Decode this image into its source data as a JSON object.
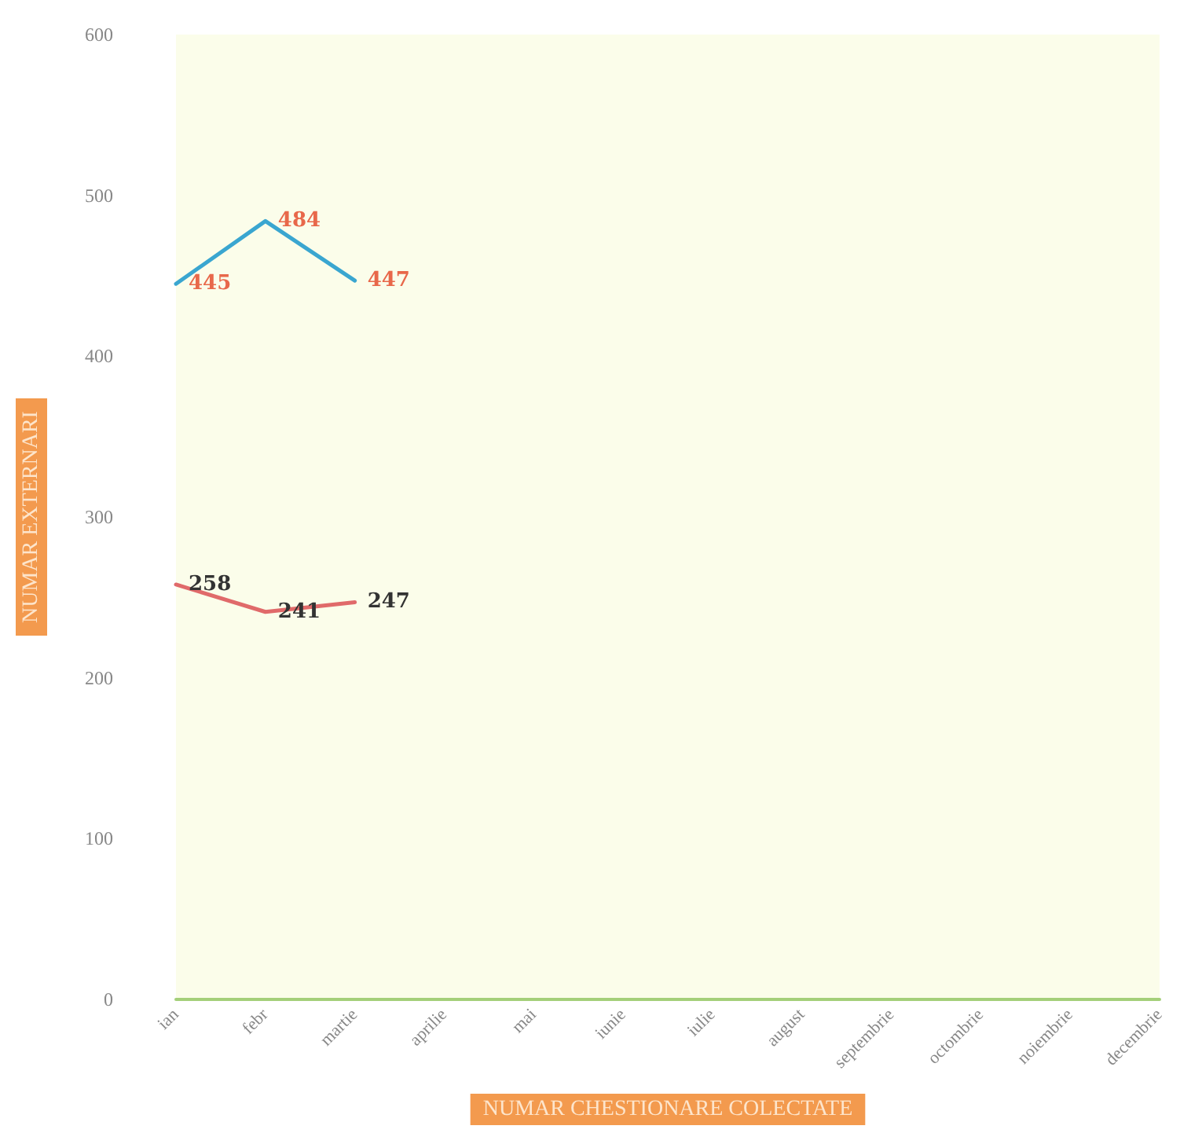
{
  "chart_data": {
    "type": "line",
    "xlabel": "NUMAR CHESTIONARE COLECTATE",
    "ylabel": "NUMAR EXTERNARI",
    "categories": [
      "ian",
      "febr",
      "martie",
      "aprilie",
      "mai",
      "iunie",
      "iulie",
      "august",
      "septembrie",
      "octombrie",
      "noiembrie",
      "decembrie"
    ],
    "series": [
      {
        "color": "#3aa6d0",
        "values": [
          445,
          484,
          447,
          null,
          null,
          null,
          null,
          null,
          null,
          null,
          null,
          null
        ]
      },
      {
        "color": "#e06a6a",
        "values": [
          258,
          241,
          247,
          null,
          null,
          null,
          null,
          null,
          null,
          null,
          null,
          null
        ]
      }
    ],
    "ylim": [
      0,
      600
    ],
    "yticks": [
      0,
      100,
      200,
      300,
      400,
      500,
      600
    ],
    "data_labels": true,
    "grid": false,
    "marker": "none",
    "line_style": "solid"
  }
}
